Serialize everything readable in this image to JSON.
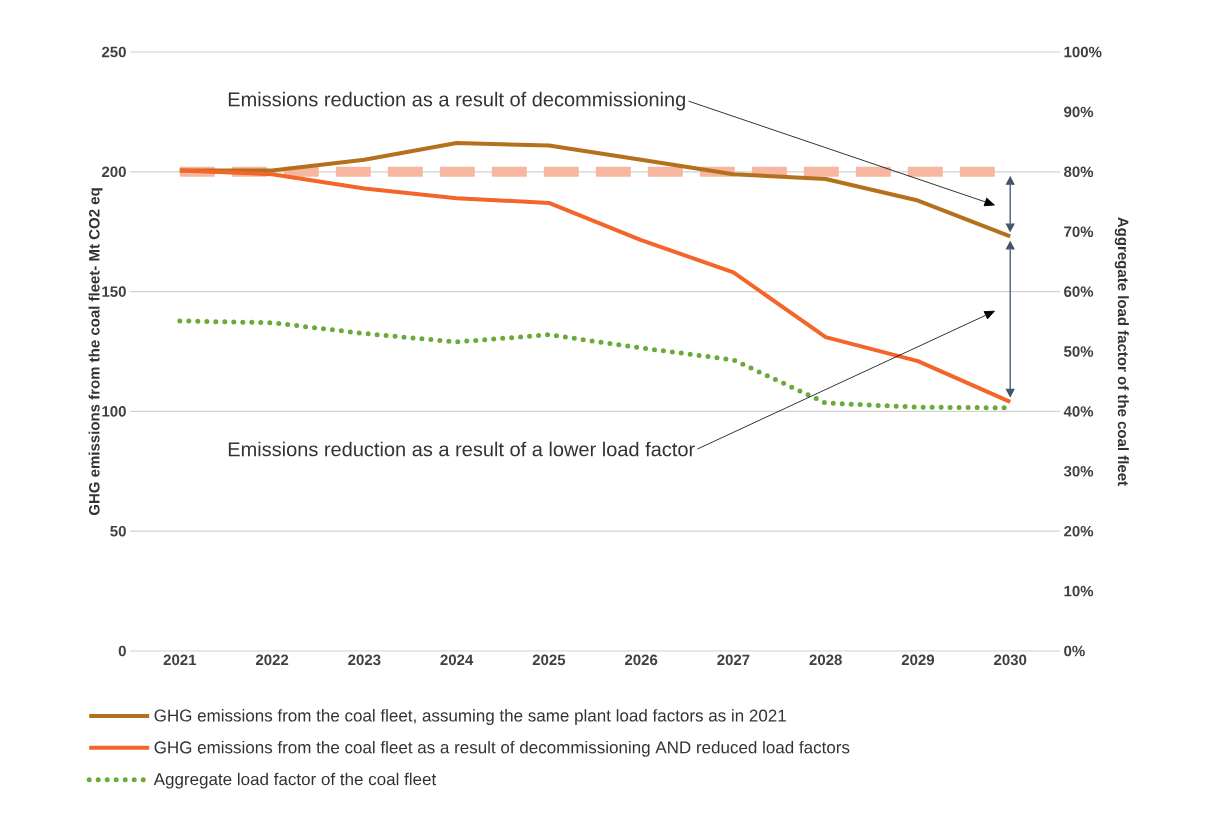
{
  "chart_data": {
    "type": "line",
    "categories": [
      "2021",
      "2022",
      "2023",
      "2024",
      "2025",
      "2026",
      "2027",
      "2028",
      "2029",
      "2030"
    ],
    "ylabel": "GHG emissions from the coal fleet- Mt CO2 eq",
    "y2label": "Aggregate load factor of the coal fleet",
    "ylim": [
      0,
      250
    ],
    "yticks": [
      0,
      50,
      100,
      150,
      200,
      250
    ],
    "y2lim": [
      0,
      100
    ],
    "y2ticks": [
      {
        "value": 0,
        "label": "0%"
      },
      {
        "value": 10,
        "label": "10%"
      },
      {
        "value": 20,
        "label": "20%"
      },
      {
        "value": 30,
        "label": "30%"
      },
      {
        "value": 40,
        "label": "40%"
      },
      {
        "value": 50,
        "label": "50%"
      },
      {
        "value": 60,
        "label": "60%"
      },
      {
        "value": 70,
        "label": "70%"
      },
      {
        "value": 80,
        "label": "80%"
      },
      {
        "value": 90,
        "label": "90%"
      },
      {
        "value": 100,
        "label": "100%"
      }
    ],
    "series": [
      {
        "name": "GHG emissions from the coal fleet, assuming the same plant load factors as in 2021",
        "color": "#b5701c",
        "values": [
          200.5,
          200.5,
          205,
          212,
          211,
          205,
          199,
          197,
          188,
          173
        ]
      },
      {
        "name": "GHG emissions from the coal fleet as a result of decommissioning AND reduced load factors",
        "color": "#f4652a",
        "values": [
          200.5,
          199,
          193,
          189,
          187,
          171.5,
          158,
          131,
          121,
          104
        ]
      },
      {
        "name": "Aggregate load factor of the coal fleet",
        "color": "#6aaa3a",
        "values": [
          55.1,
          54.8,
          53,
          51.6,
          52.8,
          50.6,
          48.6,
          41.4,
          40.7,
          40.6
        ],
        "axis": "y2",
        "line_style": "dotted"
      }
    ],
    "ref_lines": [
      {
        "axis": "y",
        "value": 200,
        "color": "#f7b6a0",
        "line_style": "dashed"
      }
    ],
    "annotations": [
      "Emissions reduction as a result of decommissioning",
      "Emissions reduction as a result of a lower load factor"
    ],
    "grid": "y",
    "legend": "bottom",
    "line_style": "solid"
  }
}
